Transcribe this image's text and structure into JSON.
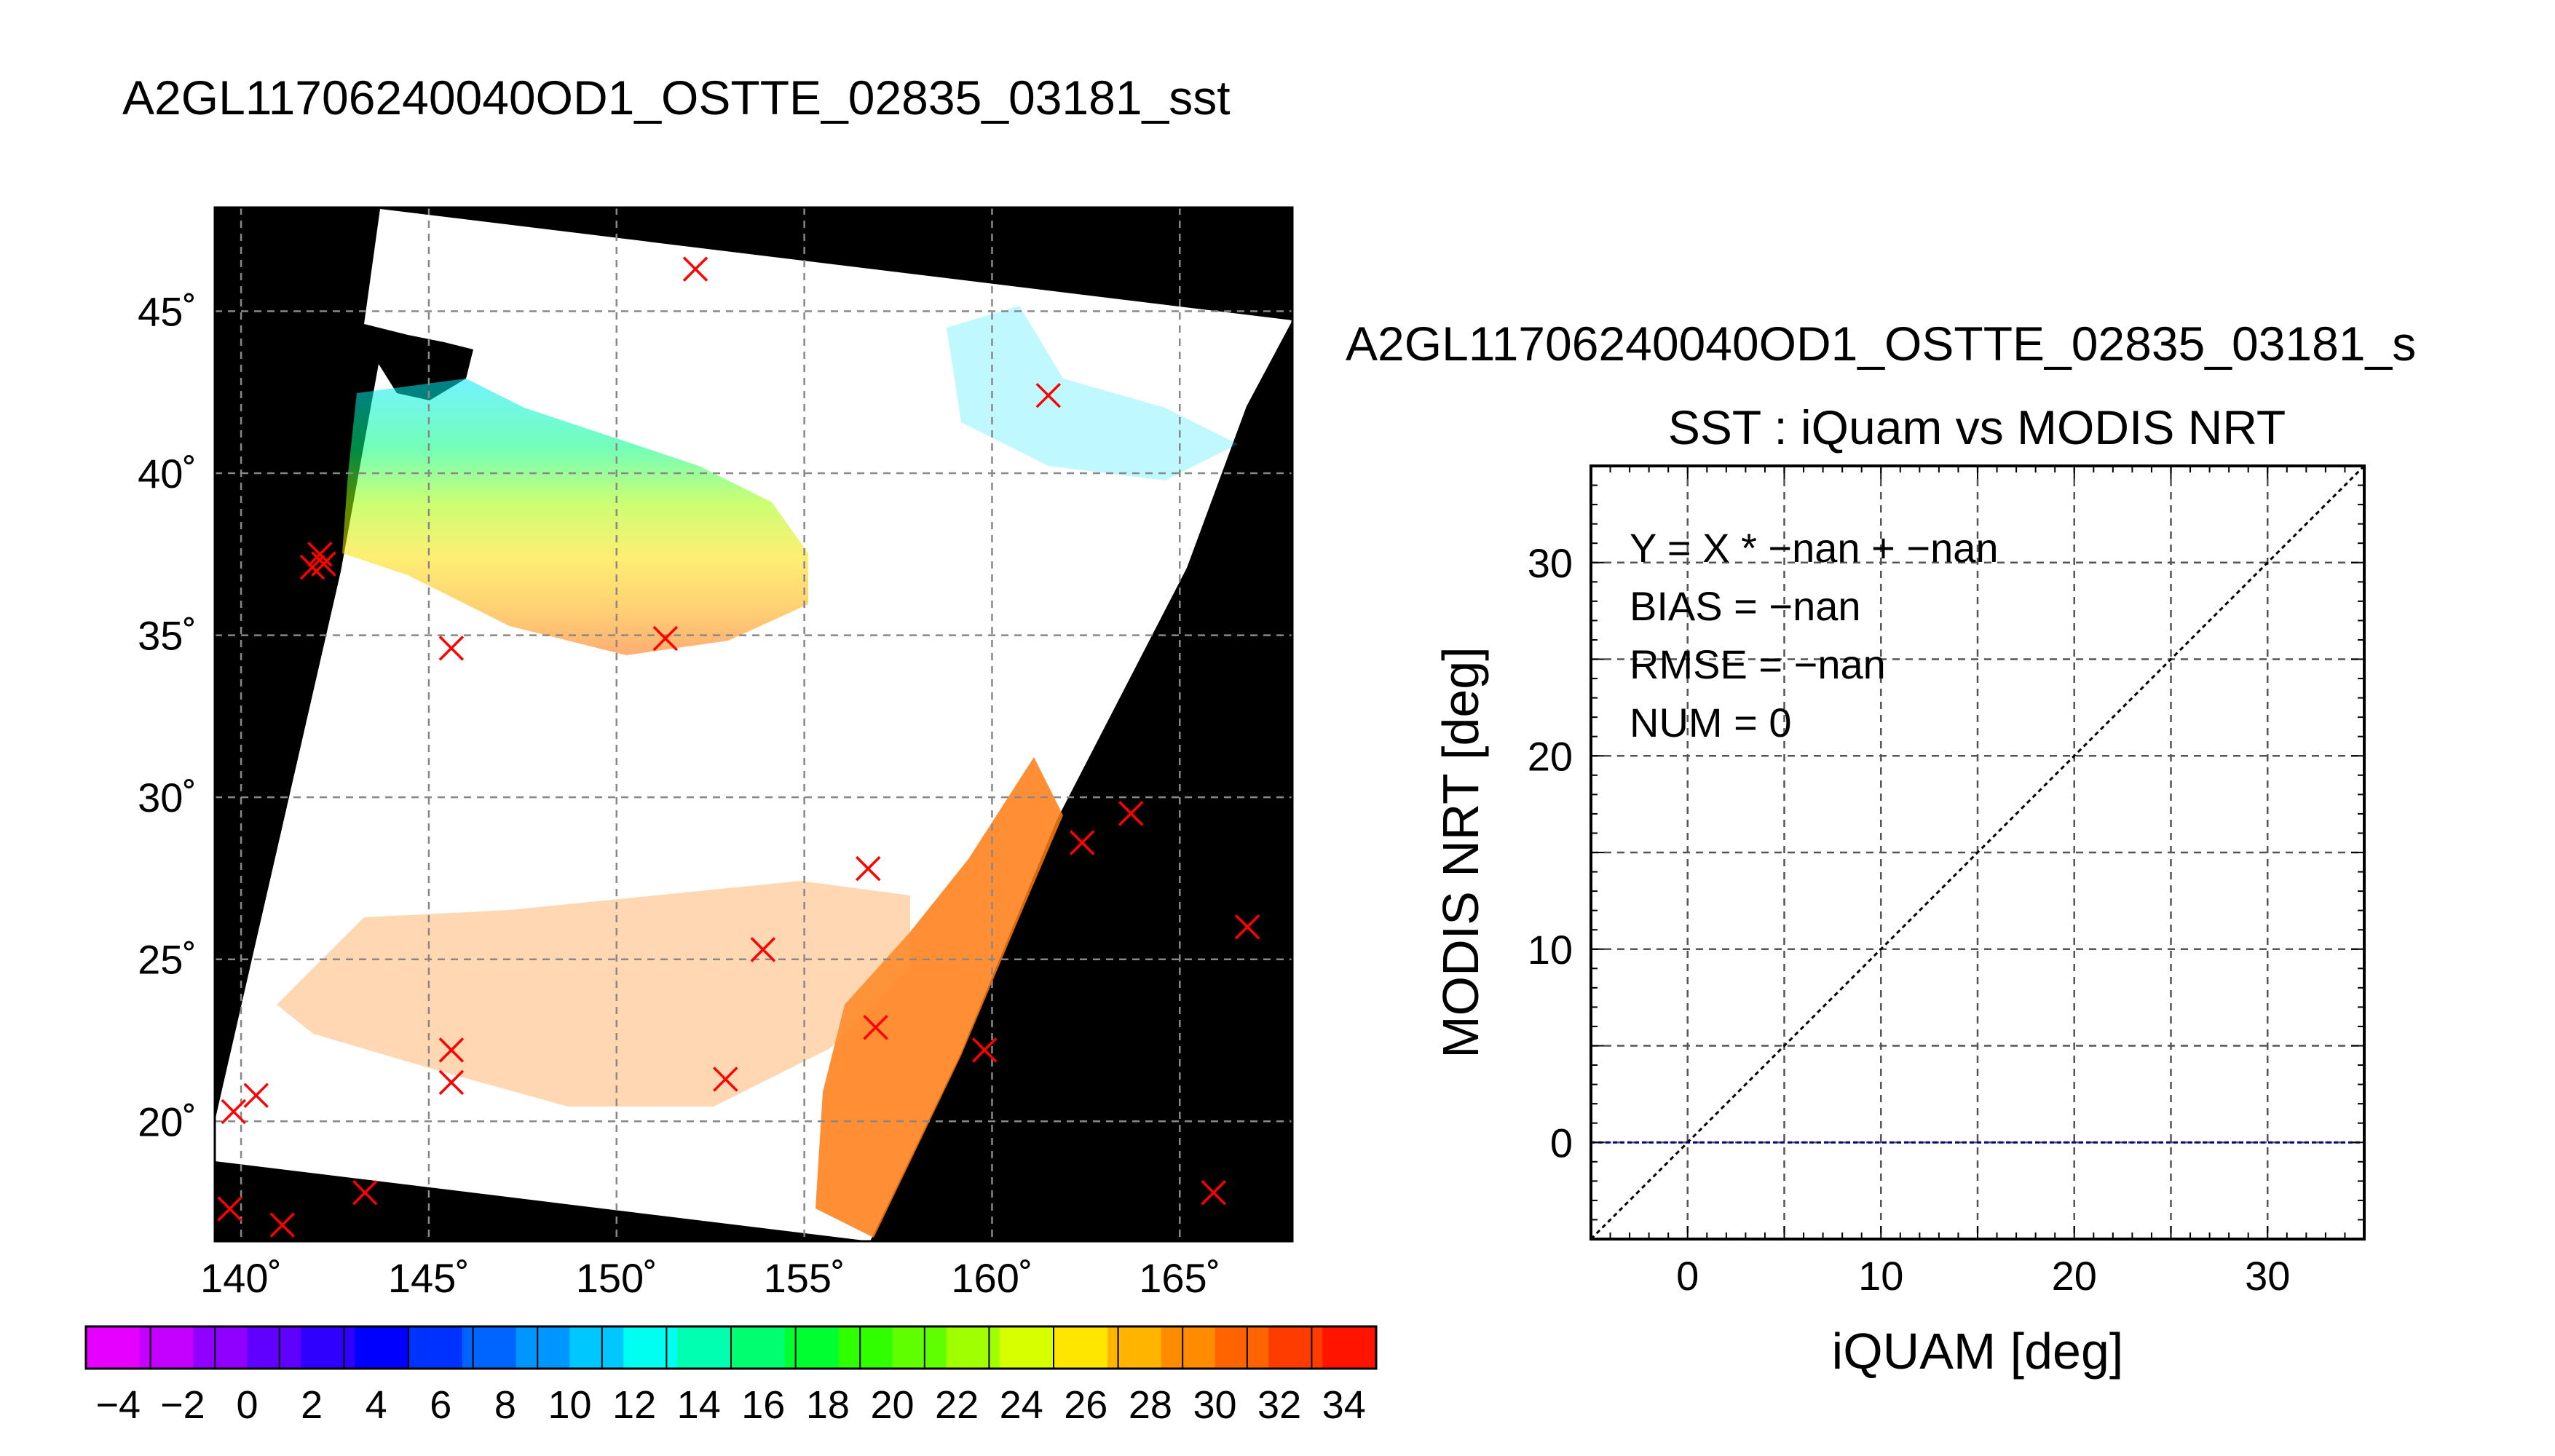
{
  "chart_data": [
    {
      "type": "map",
      "title": "A2GL11706240040OD1_OSTTE_02835_03181_sst",
      "xlim": [
        139.3,
        168
      ],
      "ylim": [
        16.3,
        48.2
      ],
      "x_ticks": [
        140,
        145,
        150,
        155,
        160,
        165
      ],
      "y_ticks": [
        20,
        25,
        30,
        35,
        40,
        45
      ],
      "x_tick_labels": [
        "140˚",
        "145˚",
        "150˚",
        "155˚",
        "160˚",
        "165˚"
      ],
      "y_tick_labels": [
        "20˚",
        "25˚",
        "30˚",
        "35˚",
        "40˚",
        "45˚"
      ],
      "grid": true,
      "background_color": "#000000",
      "swath_color": "#ffffff",
      "marker": "x",
      "marker_color": "#ff0000",
      "points": [
        {
          "x": 152.1,
          "y": 46.3
        },
        {
          "x": 161.5,
          "y": 42.4
        },
        {
          "x": 142.1,
          "y": 37.5
        },
        {
          "x": 141.9,
          "y": 37.1
        },
        {
          "x": 142.2,
          "y": 37.2
        },
        {
          "x": 145.6,
          "y": 34.6
        },
        {
          "x": 151.3,
          "y": 34.9
        },
        {
          "x": 163.7,
          "y": 29.5
        },
        {
          "x": 162.4,
          "y": 28.6
        },
        {
          "x": 156.7,
          "y": 27.8
        },
        {
          "x": 166.8,
          "y": 26.0
        },
        {
          "x": 153.9,
          "y": 25.3
        },
        {
          "x": 156.9,
          "y": 22.9
        },
        {
          "x": 159.8,
          "y": 22.2
        },
        {
          "x": 145.6,
          "y": 22.2
        },
        {
          "x": 145.6,
          "y": 21.2
        },
        {
          "x": 152.9,
          "y": 21.3
        },
        {
          "x": 140.4,
          "y": 20.8
        },
        {
          "x": 139.8,
          "y": 20.3
        },
        {
          "x": 143.3,
          "y": 17.8
        },
        {
          "x": 139.7,
          "y": 17.3
        },
        {
          "x": 141.1,
          "y": 16.8
        },
        {
          "x": 165.9,
          "y": 17.8
        }
      ]
    },
    {
      "type": "colorbar",
      "range": [
        -5,
        35
      ],
      "tick_values": [
        -4,
        -2,
        0,
        2,
        4,
        6,
        8,
        10,
        12,
        14,
        16,
        18,
        20,
        22,
        24,
        26,
        28,
        30,
        32,
        34
      ],
      "tick_labels": [
        "−4",
        "−2",
        "0",
        "2",
        "4",
        "6",
        "8",
        "10",
        "12",
        "14",
        "16",
        "18",
        "20",
        "22",
        "24",
        "26",
        "28",
        "30",
        "32",
        "34"
      ],
      "colors": [
        "#e600ff",
        "#c400ff",
        "#9000ff",
        "#6000ff",
        "#3000ff",
        "#0000ff",
        "#0032ff",
        "#0064ff",
        "#0096ff",
        "#00c8ff",
        "#00fff0",
        "#00ffb0",
        "#00ff70",
        "#00ff30",
        "#30ff00",
        "#60ff00",
        "#a0ff00",
        "#d8ff00",
        "#ffe600",
        "#ffb400",
        "#ff8c00",
        "#ff6400",
        "#ff3c00",
        "#ff1400"
      ]
    },
    {
      "type": "scatter",
      "title_top": "A2GL11706240040OD1_OSTTE_02835_03181_s",
      "title": "SST : iQuam vs MODIS NRT",
      "xlabel": "iQUAM [deg]",
      "ylabel": "MODIS NRT [deg]",
      "xlim": [
        -5,
        35
      ],
      "ylim": [
        -5,
        35
      ],
      "x_ticks": [
        0,
        10,
        20,
        30
      ],
      "y_ticks": [
        0,
        10,
        20,
        30
      ],
      "grid": true,
      "grid_step": 5,
      "reference_line": {
        "name": "Y = X",
        "x": [
          -5,
          35
        ],
        "y": [
          -5,
          35
        ],
        "color": "#000000"
      },
      "horizontal_line": {
        "y": 0,
        "color": "#00008b"
      },
      "points": [],
      "annotations": [
        "Y = X * −nan + −nan",
        "BIAS = −nan",
        "RMSE = −nan",
        "NUM = 0"
      ]
    }
  ]
}
